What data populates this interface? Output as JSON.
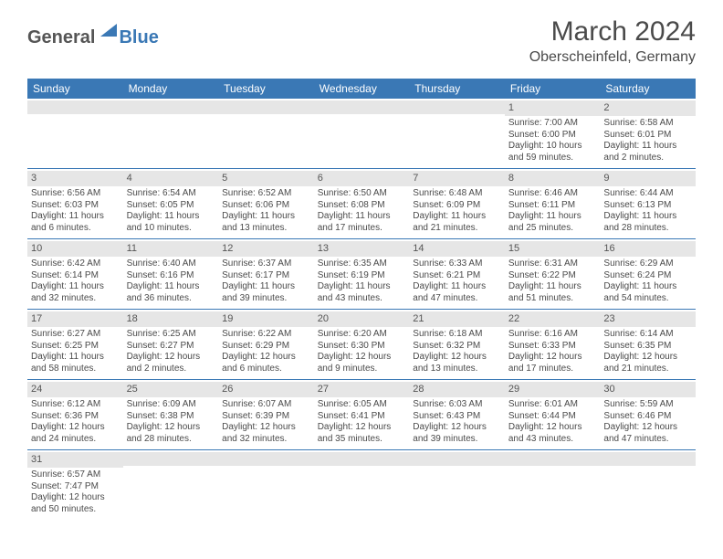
{
  "logo": {
    "general": "General",
    "blue": "Blue"
  },
  "title": "March 2024",
  "location": "Oberscheinfeld, Germany",
  "accent_color": "#3a78b5",
  "header_bg": "#e6e6e6",
  "text_color": "#4a4a4a",
  "weekdays": [
    "Sunday",
    "Monday",
    "Tuesday",
    "Wednesday",
    "Thursday",
    "Friday",
    "Saturday"
  ],
  "weeks": [
    [
      {
        "empty": true
      },
      {
        "empty": true
      },
      {
        "empty": true
      },
      {
        "empty": true
      },
      {
        "empty": true
      },
      {
        "day": "1",
        "sunrise": "Sunrise: 7:00 AM",
        "sunset": "Sunset: 6:00 PM",
        "daylight": "Daylight: 10 hours and 59 minutes."
      },
      {
        "day": "2",
        "sunrise": "Sunrise: 6:58 AM",
        "sunset": "Sunset: 6:01 PM",
        "daylight": "Daylight: 11 hours and 2 minutes."
      }
    ],
    [
      {
        "day": "3",
        "sunrise": "Sunrise: 6:56 AM",
        "sunset": "Sunset: 6:03 PM",
        "daylight": "Daylight: 11 hours and 6 minutes."
      },
      {
        "day": "4",
        "sunrise": "Sunrise: 6:54 AM",
        "sunset": "Sunset: 6:05 PM",
        "daylight": "Daylight: 11 hours and 10 minutes."
      },
      {
        "day": "5",
        "sunrise": "Sunrise: 6:52 AM",
        "sunset": "Sunset: 6:06 PM",
        "daylight": "Daylight: 11 hours and 13 minutes."
      },
      {
        "day": "6",
        "sunrise": "Sunrise: 6:50 AM",
        "sunset": "Sunset: 6:08 PM",
        "daylight": "Daylight: 11 hours and 17 minutes."
      },
      {
        "day": "7",
        "sunrise": "Sunrise: 6:48 AM",
        "sunset": "Sunset: 6:09 PM",
        "daylight": "Daylight: 11 hours and 21 minutes."
      },
      {
        "day": "8",
        "sunrise": "Sunrise: 6:46 AM",
        "sunset": "Sunset: 6:11 PM",
        "daylight": "Daylight: 11 hours and 25 minutes."
      },
      {
        "day": "9",
        "sunrise": "Sunrise: 6:44 AM",
        "sunset": "Sunset: 6:13 PM",
        "daylight": "Daylight: 11 hours and 28 minutes."
      }
    ],
    [
      {
        "day": "10",
        "sunrise": "Sunrise: 6:42 AM",
        "sunset": "Sunset: 6:14 PM",
        "daylight": "Daylight: 11 hours and 32 minutes."
      },
      {
        "day": "11",
        "sunrise": "Sunrise: 6:40 AM",
        "sunset": "Sunset: 6:16 PM",
        "daylight": "Daylight: 11 hours and 36 minutes."
      },
      {
        "day": "12",
        "sunrise": "Sunrise: 6:37 AM",
        "sunset": "Sunset: 6:17 PM",
        "daylight": "Daylight: 11 hours and 39 minutes."
      },
      {
        "day": "13",
        "sunrise": "Sunrise: 6:35 AM",
        "sunset": "Sunset: 6:19 PM",
        "daylight": "Daylight: 11 hours and 43 minutes."
      },
      {
        "day": "14",
        "sunrise": "Sunrise: 6:33 AM",
        "sunset": "Sunset: 6:21 PM",
        "daylight": "Daylight: 11 hours and 47 minutes."
      },
      {
        "day": "15",
        "sunrise": "Sunrise: 6:31 AM",
        "sunset": "Sunset: 6:22 PM",
        "daylight": "Daylight: 11 hours and 51 minutes."
      },
      {
        "day": "16",
        "sunrise": "Sunrise: 6:29 AM",
        "sunset": "Sunset: 6:24 PM",
        "daylight": "Daylight: 11 hours and 54 minutes."
      }
    ],
    [
      {
        "day": "17",
        "sunrise": "Sunrise: 6:27 AM",
        "sunset": "Sunset: 6:25 PM",
        "daylight": "Daylight: 11 hours and 58 minutes."
      },
      {
        "day": "18",
        "sunrise": "Sunrise: 6:25 AM",
        "sunset": "Sunset: 6:27 PM",
        "daylight": "Daylight: 12 hours and 2 minutes."
      },
      {
        "day": "19",
        "sunrise": "Sunrise: 6:22 AM",
        "sunset": "Sunset: 6:29 PM",
        "daylight": "Daylight: 12 hours and 6 minutes."
      },
      {
        "day": "20",
        "sunrise": "Sunrise: 6:20 AM",
        "sunset": "Sunset: 6:30 PM",
        "daylight": "Daylight: 12 hours and 9 minutes."
      },
      {
        "day": "21",
        "sunrise": "Sunrise: 6:18 AM",
        "sunset": "Sunset: 6:32 PM",
        "daylight": "Daylight: 12 hours and 13 minutes."
      },
      {
        "day": "22",
        "sunrise": "Sunrise: 6:16 AM",
        "sunset": "Sunset: 6:33 PM",
        "daylight": "Daylight: 12 hours and 17 minutes."
      },
      {
        "day": "23",
        "sunrise": "Sunrise: 6:14 AM",
        "sunset": "Sunset: 6:35 PM",
        "daylight": "Daylight: 12 hours and 21 minutes."
      }
    ],
    [
      {
        "day": "24",
        "sunrise": "Sunrise: 6:12 AM",
        "sunset": "Sunset: 6:36 PM",
        "daylight": "Daylight: 12 hours and 24 minutes."
      },
      {
        "day": "25",
        "sunrise": "Sunrise: 6:09 AM",
        "sunset": "Sunset: 6:38 PM",
        "daylight": "Daylight: 12 hours and 28 minutes."
      },
      {
        "day": "26",
        "sunrise": "Sunrise: 6:07 AM",
        "sunset": "Sunset: 6:39 PM",
        "daylight": "Daylight: 12 hours and 32 minutes."
      },
      {
        "day": "27",
        "sunrise": "Sunrise: 6:05 AM",
        "sunset": "Sunset: 6:41 PM",
        "daylight": "Daylight: 12 hours and 35 minutes."
      },
      {
        "day": "28",
        "sunrise": "Sunrise: 6:03 AM",
        "sunset": "Sunset: 6:43 PM",
        "daylight": "Daylight: 12 hours and 39 minutes."
      },
      {
        "day": "29",
        "sunrise": "Sunrise: 6:01 AM",
        "sunset": "Sunset: 6:44 PM",
        "daylight": "Daylight: 12 hours and 43 minutes."
      },
      {
        "day": "30",
        "sunrise": "Sunrise: 5:59 AM",
        "sunset": "Sunset: 6:46 PM",
        "daylight": "Daylight: 12 hours and 47 minutes."
      }
    ],
    [
      {
        "day": "31",
        "sunrise": "Sunrise: 6:57 AM",
        "sunset": "Sunset: 7:47 PM",
        "daylight": "Daylight: 12 hours and 50 minutes."
      },
      {
        "empty": true
      },
      {
        "empty": true
      },
      {
        "empty": true
      },
      {
        "empty": true
      },
      {
        "empty": true
      },
      {
        "empty": true
      }
    ]
  ]
}
